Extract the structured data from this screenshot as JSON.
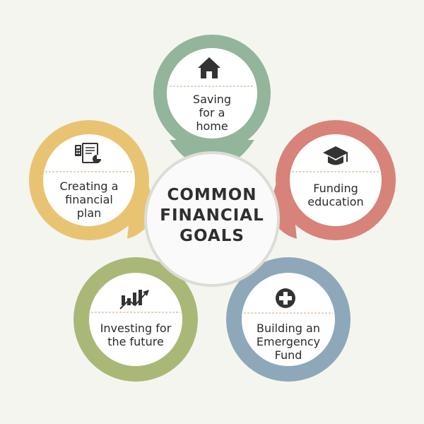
{
  "center": {
    "title": "COMMON\nFINANCIAL\nGOALS"
  },
  "goals": [
    {
      "label": "Saving\nfor a\nhome",
      "icon": "house-icon",
      "color": "#93b59b"
    },
    {
      "label": "Funding\neducation",
      "icon": "graduation-cap-icon",
      "color": "#d7837a"
    },
    {
      "label": "Building an\nEmergency\nFund",
      "icon": "first-aid-plus-icon",
      "color": "#8ea8ba"
    },
    {
      "label": "Investing for\nthe future",
      "icon": "growth-chart-icon",
      "color": "#a9b877"
    },
    {
      "label": "Creating a\nfinancial\nplan",
      "icon": "financial-plan-icon",
      "color": "#e8c472"
    }
  ]
}
